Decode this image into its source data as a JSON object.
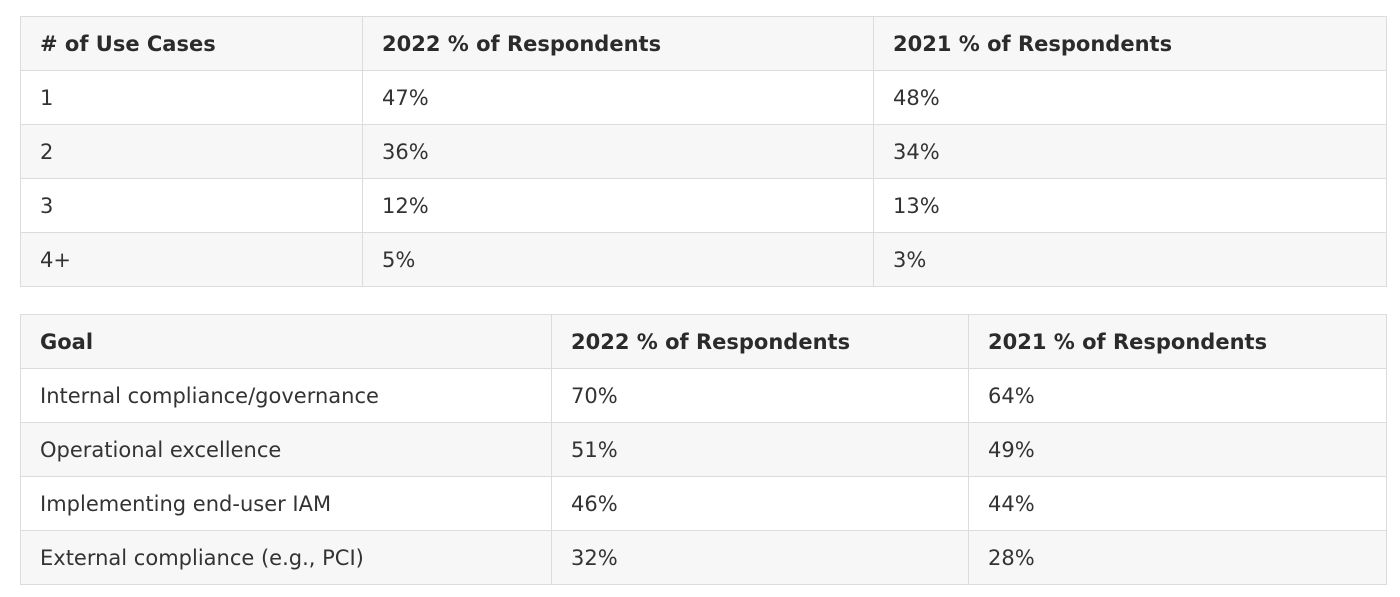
{
  "table_use_cases": {
    "headers": [
      "# of Use Cases",
      "2022 % of Respondents",
      "2021 % of Respondents"
    ],
    "rows": [
      [
        "1",
        "47%",
        "48%"
      ],
      [
        "2",
        "36%",
        "34%"
      ],
      [
        "3",
        "12%",
        "13%"
      ],
      [
        "4+",
        "5%",
        "3%"
      ]
    ]
  },
  "table_goals": {
    "headers": [
      "Goal",
      "2022 % of Respondents",
      "2021 % of Respondents"
    ],
    "rows": [
      [
        "Internal compliance/governance",
        "70%",
        "64%"
      ],
      [
        "Operational excellence",
        "51%",
        "49%"
      ],
      [
        "Implementing end-user IAM",
        "46%",
        "44%"
      ],
      [
        "External compliance (e.g., PCI)",
        "32%",
        "28%"
      ]
    ]
  },
  "colors": {
    "border": "#dcdcdc",
    "header_bg": "#f7f7f7",
    "stripe_bg": "#f7f7f7",
    "text": "#2b2b2b"
  }
}
